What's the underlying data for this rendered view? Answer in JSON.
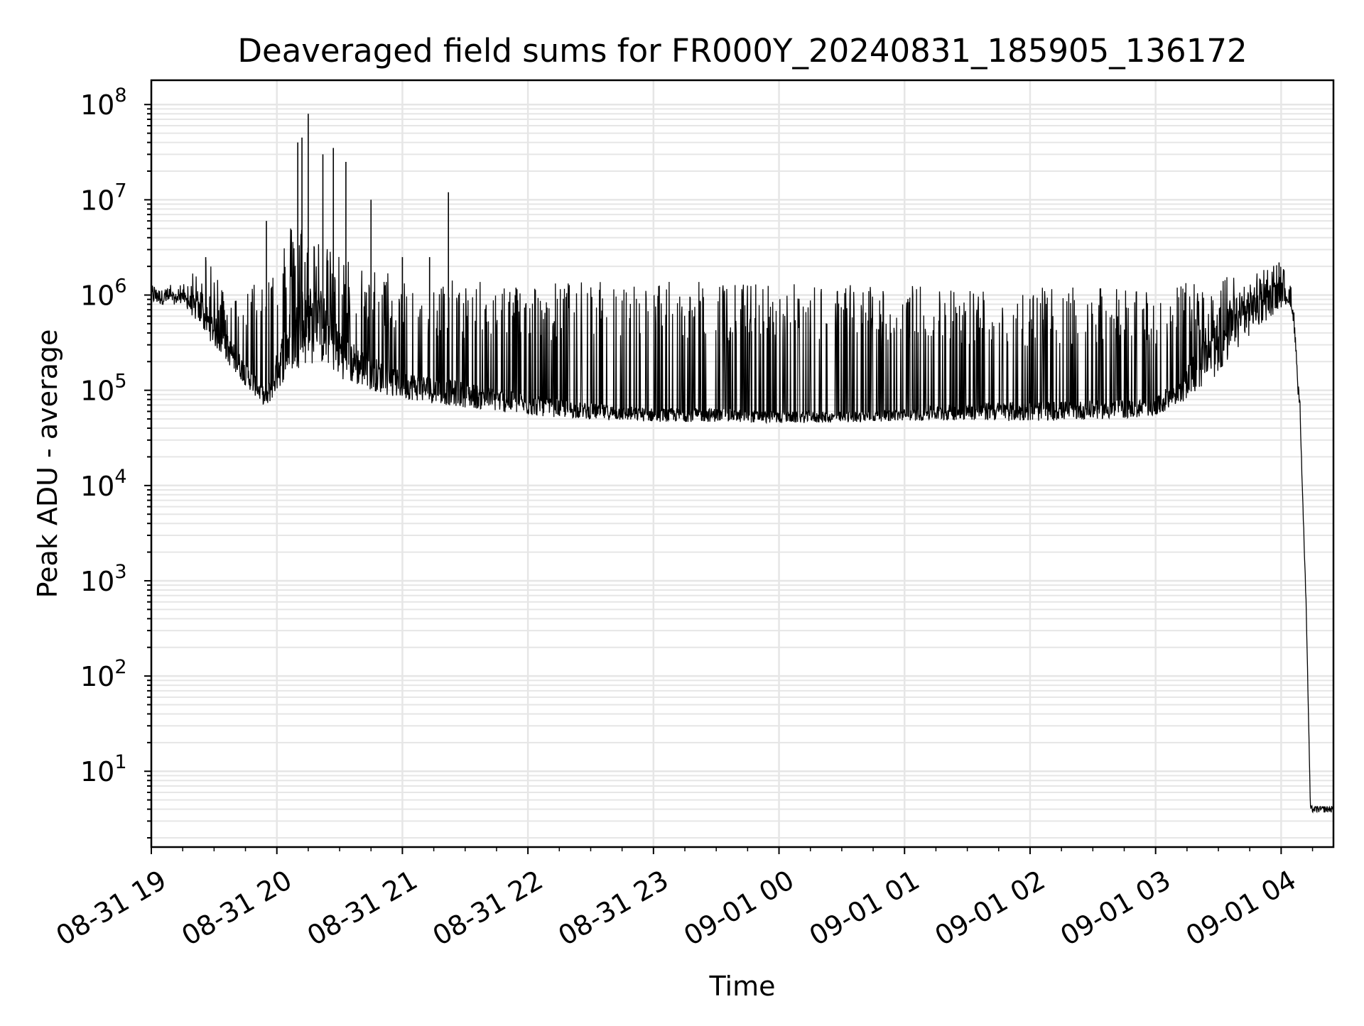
{
  "chart_data": {
    "type": "line",
    "title": "Deaveraged field sums for FR000Y_20240831_185905_136172",
    "xlabel": "Time",
    "ylabel": "Peak ADU - average",
    "y_scale": "log",
    "grid": true,
    "legend": "none",
    "xlim": [
      "2024-08-31 19:00",
      "2024-09-01 04:25"
    ],
    "ylim": [
      1.6,
      180000000
    ],
    "x_ticks": [
      "08-31 19",
      "08-31 20",
      "08-31 21",
      "08-31 22",
      "08-31 23",
      "09-01 00",
      "09-01 01",
      "09-01 02",
      "09-01 03",
      "09-01 04"
    ],
    "y_ticks": [
      {
        "base": "10",
        "exp": "1"
      },
      {
        "base": "10",
        "exp": "2"
      },
      {
        "base": "10",
        "exp": "3"
      },
      {
        "base": "10",
        "exp": "4"
      },
      {
        "base": "10",
        "exp": "5"
      },
      {
        "base": "10",
        "exp": "6"
      },
      {
        "base": "10",
        "exp": "7"
      },
      {
        "base": "10",
        "exp": "8"
      }
    ],
    "series": [
      {
        "color": "#000000",
        "x": [
          "2024-08-31 19:00",
          "2024-08-31 19:10",
          "2024-08-31 19:15",
          "2024-08-31 19:25",
          "2024-08-31 19:35",
          "2024-08-31 19:45",
          "2024-08-31 19:55",
          "2024-08-31 20:05",
          "2024-08-31 20:10",
          "2024-08-31 20:20",
          "2024-08-31 20:35",
          "2024-08-31 20:55",
          "2024-08-31 21:15",
          "2024-08-31 21:30",
          "2024-08-31 22:00",
          "2024-08-31 22:30",
          "2024-08-31 23:00",
          "2024-08-31 23:30",
          "2024-09-01 00:00",
          "2024-09-01 00:30",
          "2024-09-01 01:00",
          "2024-09-01 01:30",
          "2024-09-01 02:00",
          "2024-09-01 02:30",
          "2024-09-01 03:00",
          "2024-09-01 03:15",
          "2024-09-01 03:30",
          "2024-09-01 03:45",
          "2024-09-01 03:55",
          "2024-09-01 04:00",
          "2024-09-01 04:03",
          "2024-09-01 04:06",
          "2024-09-01 04:09",
          "2024-09-01 04:12",
          "2024-09-01 04:14",
          "2024-09-01 04:25"
        ],
        "y": [
          1000000,
          900000,
          950000,
          600000,
          300000,
          150000,
          80000,
          300000,
          400000,
          500000,
          200000,
          120000,
          100000,
          90000,
          70000,
          60000,
          55000,
          55000,
          52000,
          52000,
          55000,
          60000,
          60000,
          62000,
          65000,
          120000,
          300000,
          700000,
          900000,
          1000000,
          950000,
          600000,
          60000,
          500,
          4,
          4
        ]
      }
    ],
    "upper_envelope": {
      "x": [
        "2024-08-31 19:00",
        "2024-08-31 19:15",
        "2024-08-31 19:25",
        "2024-08-31 19:40",
        "2024-08-31 19:55",
        "2024-08-31 20:10",
        "2024-08-31 20:25",
        "2024-08-31 20:45",
        "2024-08-31 21:10",
        "2024-08-31 21:30",
        "2024-08-31 22:00",
        "2024-08-31 23:00",
        "2024-09-01 00:00",
        "2024-09-01 01:00",
        "2024-09-01 02:00",
        "2024-09-01 03:00",
        "2024-09-01 03:30",
        "2024-09-01 04:00",
        "2024-09-01 04:05",
        "2024-09-01 04:09",
        "2024-09-01 04:12",
        "2024-09-01 04:14",
        "2024-09-01 04:25"
      ],
      "y": [
        1300000,
        1300000,
        2500000,
        1000000,
        2000000,
        8000000,
        3000000,
        2000000,
        1500000,
        1400000,
        1400000,
        1400000,
        1350000,
        1300000,
        1200000,
        1200000,
        1500000,
        2200000,
        1200000,
        80000,
        600,
        4.5,
        4.5
      ]
    },
    "lower_envelope": {
      "x": [
        "2024-08-31 19:00",
        "2024-08-31 19:15",
        "2024-08-31 19:25",
        "2024-08-31 19:40",
        "2024-08-31 19:55",
        "2024-08-31 20:10",
        "2024-08-31 20:25",
        "2024-08-31 20:45",
        "2024-08-31 21:10",
        "2024-08-31 21:30",
        "2024-08-31 22:00",
        "2024-08-31 23:00",
        "2024-09-01 00:00",
        "2024-09-01 01:00",
        "2024-09-01 02:00",
        "2024-09-01 03:00",
        "2024-09-01 03:30",
        "2024-09-01 04:00",
        "2024-09-01 04:05",
        "2024-09-01 04:09",
        "2024-09-01 04:12",
        "2024-09-01 04:14",
        "2024-09-01 04:25"
      ],
      "y": [
        600000,
        700000,
        250000,
        100000,
        50000,
        60000,
        60000,
        60000,
        50000,
        45000,
        40000,
        38000,
        38000,
        40000,
        35000,
        40000,
        60000,
        500000,
        800000,
        30000,
        300,
        3.8,
        3.8
      ]
    },
    "spikes": [
      {
        "x": "2024-08-31 19:26",
        "y": 2500000
      },
      {
        "x": "2024-08-31 19:55",
        "y": 6000000
      },
      {
        "x": "2024-08-31 20:10",
        "y": 40000000
      },
      {
        "x": "2024-08-31 20:12",
        "y": 45000000
      },
      {
        "x": "2024-08-31 20:15",
        "y": 80000000
      },
      {
        "x": "2024-08-31 20:22",
        "y": 30000000
      },
      {
        "x": "2024-08-31 20:27",
        "y": 35000000
      },
      {
        "x": "2024-08-31 20:33",
        "y": 25000000
      },
      {
        "x": "2024-08-31 20:45",
        "y": 10000000
      },
      {
        "x": "2024-08-31 21:00",
        "y": 2500000
      },
      {
        "x": "2024-08-31 21:13",
        "y": 2500000
      },
      {
        "x": "2024-08-31 21:22",
        "y": 12000000
      },
      {
        "x": "2024-09-01 03:59",
        "y": 2200000
      }
    ]
  }
}
